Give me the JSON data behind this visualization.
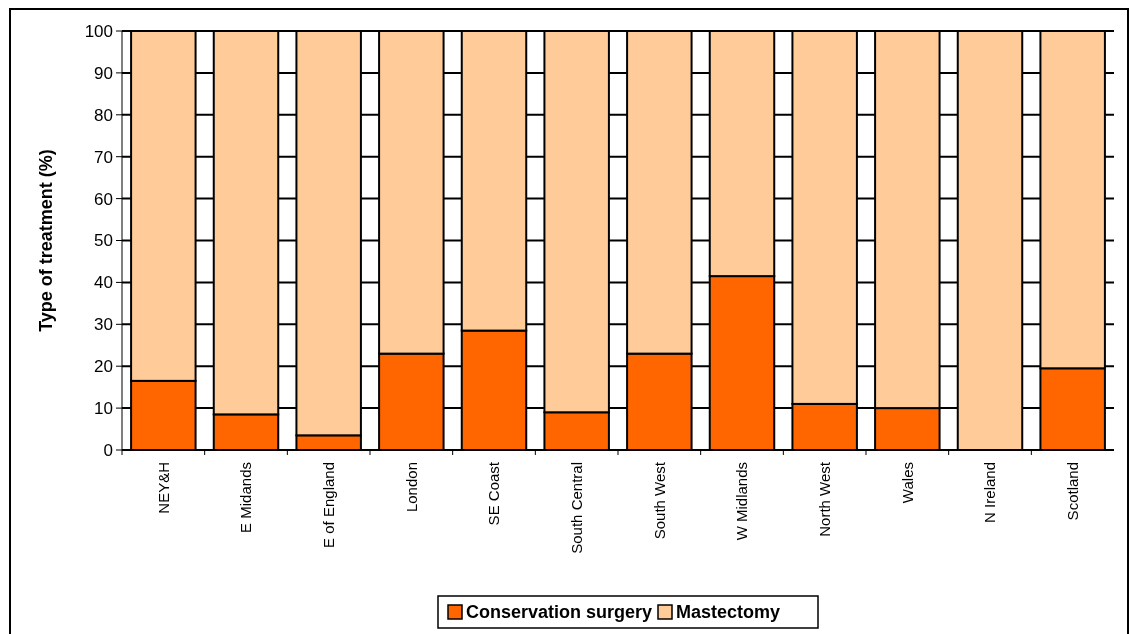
{
  "chart_data": {
    "type": "bar",
    "ylabel": "Type of treatment (%)",
    "categories": [
      "NEY&H",
      "E Midands",
      "E of England",
      "London",
      "SE Coast",
      "South Central",
      "South West",
      "W Midlands",
      "North West",
      "Wales",
      "N Ireland",
      "Scotland"
    ],
    "series": [
      {
        "name": "Conservation surgery",
        "color": "#ff6600",
        "values": [
          16.5,
          8.5,
          3.5,
          23,
          28.5,
          9,
          23,
          41.5,
          11,
          10,
          0,
          19.5
        ]
      },
      {
        "name": "Mastectomy",
        "color": "#ffcc99",
        "values": [
          83.5,
          91.5,
          96.5,
          77,
          71.5,
          91,
          77,
          58.5,
          89,
          90,
          100,
          80.5
        ]
      }
    ],
    "stacked": true,
    "ylim": [
      0,
      100
    ],
    "yticks": [
      0,
      10,
      20,
      30,
      40,
      50,
      60,
      70,
      80,
      90,
      100
    ],
    "grid": "y",
    "legend": "bottom"
  }
}
